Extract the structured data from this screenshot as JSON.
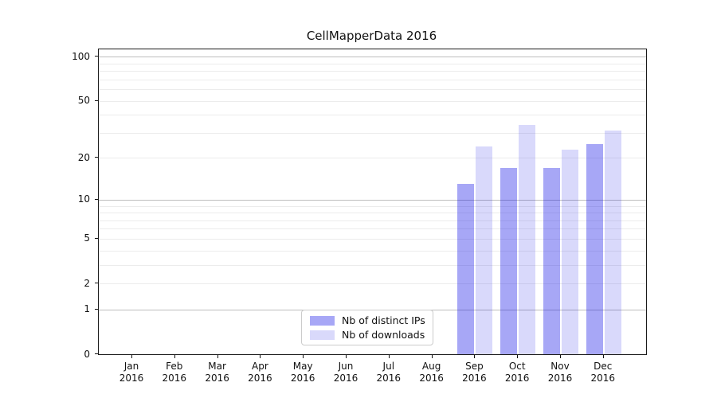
{
  "chart_data": {
    "type": "bar",
    "title": "CellMapperData 2016",
    "categories": [
      "Jan",
      "Feb",
      "Mar",
      "Apr",
      "May",
      "Jun",
      "Jul",
      "Aug",
      "Sep",
      "Oct",
      "Nov",
      "Dec"
    ],
    "year_label": "2016",
    "series": [
      {
        "name": "Nb of distinct IPs",
        "color": "rgba(10,10,230,0.36)",
        "values": [
          0,
          0,
          0,
          0,
          0,
          0,
          0,
          0,
          13,
          17,
          17,
          25
        ]
      },
      {
        "name": "Nb of downloads",
        "color": "rgba(10,10,230,0.155)",
        "values": [
          0,
          0,
          0,
          0,
          0,
          0,
          0,
          0,
          24,
          34,
          23,
          31
        ]
      }
    ],
    "yscale": "log1p",
    "ylim": [
      0,
      112
    ],
    "yticks": [
      0,
      1,
      2,
      5,
      10,
      20,
      50,
      100
    ],
    "grid": {
      "major": [
        1,
        10,
        100
      ],
      "minor": [
        2,
        3,
        4,
        5,
        6,
        7,
        8,
        9,
        20,
        30,
        40,
        50,
        60,
        70,
        80,
        90
      ]
    },
    "legend": {
      "position": "lower center"
    },
    "colors": {
      "grid_major": "#bdbdbd",
      "grid_minor": "#ececec",
      "spine": "#1a1a1a"
    }
  }
}
